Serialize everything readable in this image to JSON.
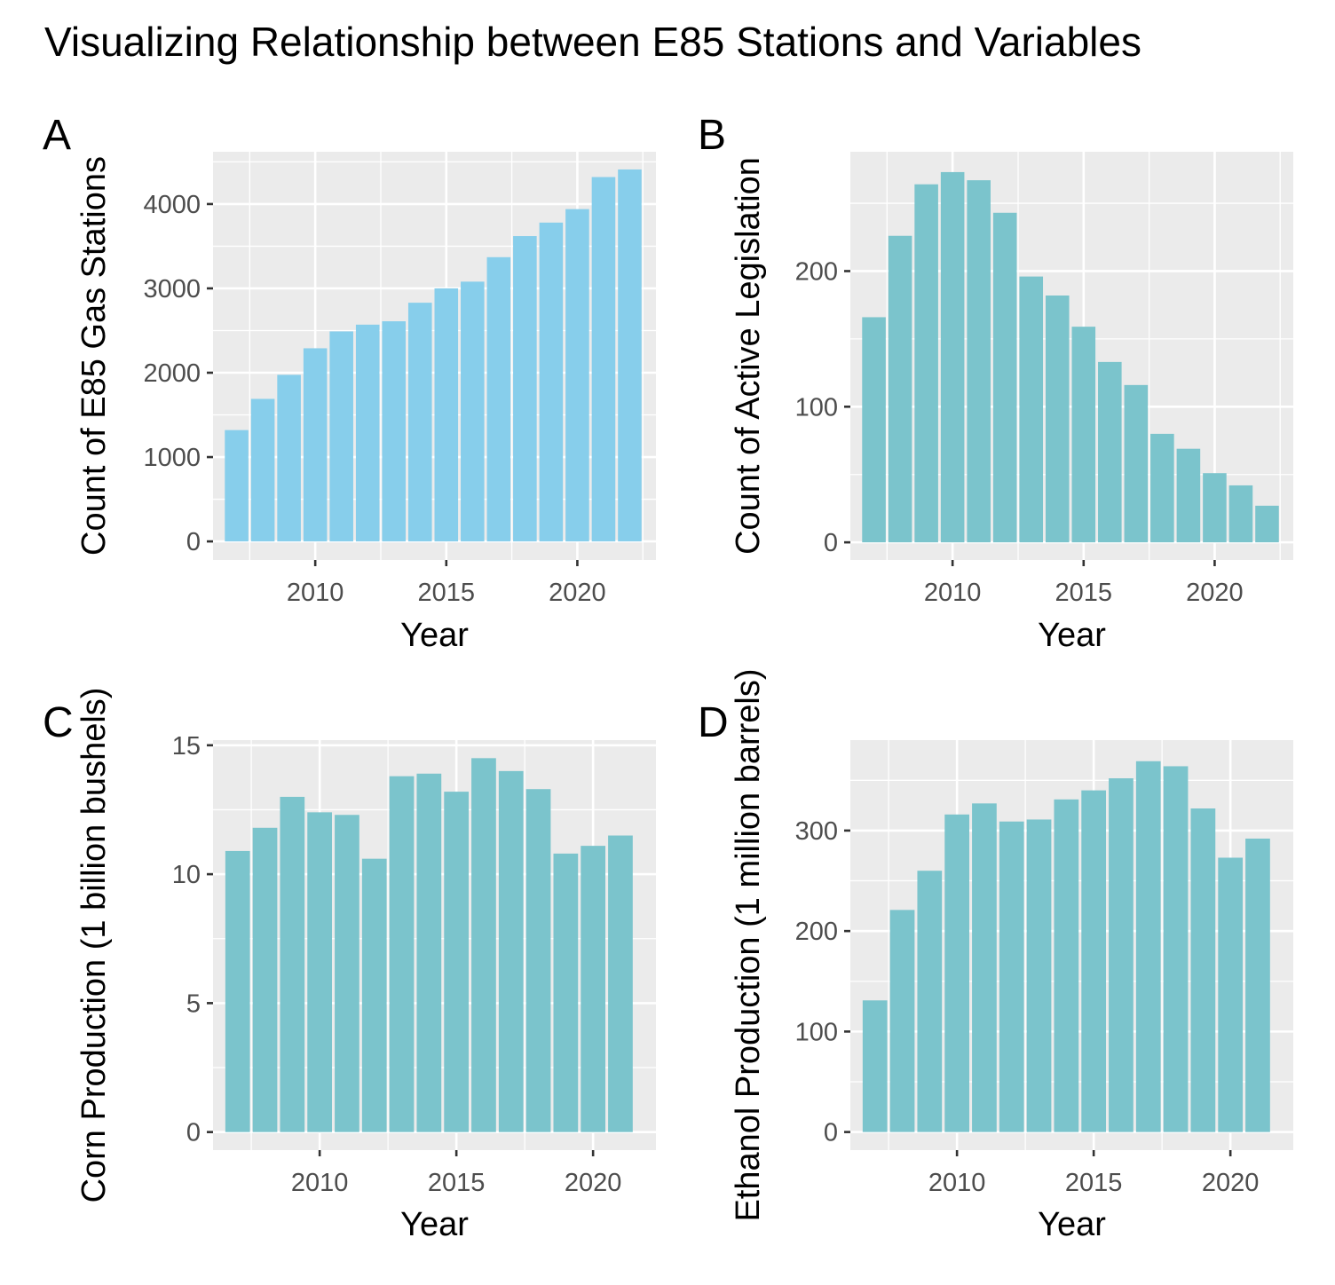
{
  "figure": {
    "title": "Visualizing Relationship between E85 Stations and Variables"
  },
  "chart_data": [
    {
      "type": "bar",
      "tag": "A",
      "xlabel": "Year",
      "ylabel": "Count of E85 Gas Stations",
      "x": [
        2007,
        2008,
        2009,
        2010,
        2011,
        2012,
        2013,
        2014,
        2015,
        2016,
        2017,
        2018,
        2019,
        2020,
        2021,
        2022
      ],
      "values": [
        1320,
        1690,
        1975,
        2290,
        2490,
        2570,
        2610,
        2830,
        3000,
        3080,
        3370,
        3620,
        3780,
        3940,
        4320,
        4410
      ],
      "xlim": [
        2006.1,
        2023.0
      ],
      "ylim": [
        -220,
        4620
      ],
      "xticks": [
        2010,
        2015,
        2020
      ],
      "yticks": [
        0,
        1000,
        2000,
        3000,
        4000
      ],
      "grid": true,
      "bar_color": "#87ceeb"
    },
    {
      "type": "bar",
      "tag": "B",
      "xlabel": "Year",
      "ylabel": "Count of Active Legislation",
      "x": [
        2007,
        2008,
        2009,
        2010,
        2011,
        2012,
        2013,
        2014,
        2015,
        2016,
        2017,
        2018,
        2019,
        2020,
        2021,
        2022
      ],
      "values": [
        166,
        226,
        264,
        273,
        267,
        243,
        196,
        182,
        159,
        133,
        116,
        80,
        69,
        51,
        42,
        27
      ],
      "xlim": [
        2006.1,
        2023.0
      ],
      "ylim": [
        -13,
        288
      ],
      "xticks": [
        2010,
        2015,
        2020
      ],
      "yticks": [
        0,
        100,
        200
      ],
      "grid": true,
      "bar_color": "#7bc4cc"
    },
    {
      "type": "bar",
      "tag": "C",
      "xlabel": "Year",
      "ylabel": "Corn Production (1 billion bushels)",
      "x": [
        2007,
        2008,
        2009,
        2010,
        2011,
        2012,
        2013,
        2014,
        2015,
        2016,
        2017,
        2018,
        2019,
        2020,
        2021
      ],
      "values": [
        10.9,
        11.8,
        13.0,
        12.4,
        12.3,
        10.6,
        13.8,
        13.9,
        13.2,
        14.5,
        14.0,
        13.3,
        10.8,
        11.1,
        11.5
      ],
      "xlim": [
        2006.1,
        2022.3
      ],
      "ylim": [
        -0.7,
        15.2
      ],
      "xticks": [
        2010,
        2015,
        2020
      ],
      "yticks": [
        0,
        5,
        10,
        15
      ],
      "grid": true,
      "bar_color": "#7bc4cc"
    },
    {
      "type": "bar",
      "tag": "D",
      "xlabel": "Year",
      "ylabel": "Ethanol Production (1 million barrels)",
      "x": [
        2007,
        2008,
        2009,
        2010,
        2011,
        2012,
        2013,
        2014,
        2015,
        2016,
        2017,
        2018,
        2019,
        2020,
        2021
      ],
      "values": [
        131,
        221,
        260,
        316,
        327,
        309,
        311,
        331,
        340,
        352,
        369,
        364,
        322,
        273,
        292
      ],
      "xlim": [
        2006.1,
        2022.3
      ],
      "ylim": [
        -18,
        390
      ],
      "xticks": [
        2010,
        2015,
        2020
      ],
      "yticks": [
        0,
        100,
        200,
        300
      ],
      "grid": true,
      "bar_color": "#7bc4cc"
    }
  ]
}
